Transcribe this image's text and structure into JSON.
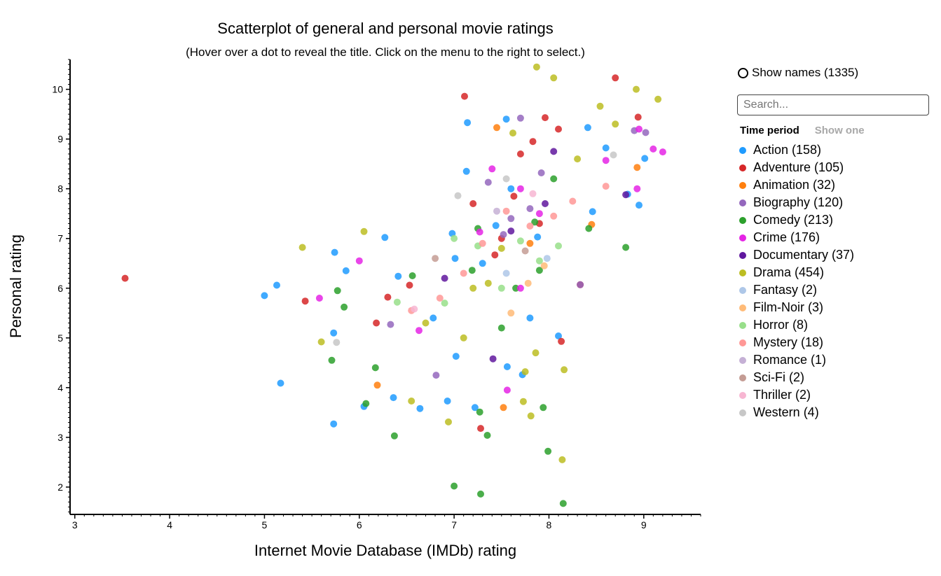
{
  "chart_data": {
    "type": "scatter",
    "title": "Scatterplot of general and personal movie ratings",
    "subtitle": "(Hover over a dot to reveal the title. Click on the menu to the right to select.)",
    "xlabel": "Internet Movie Database (IMDb) rating",
    "ylabel": "Personal rating",
    "xlim": [
      2.95,
      9.6
    ],
    "ylim": [
      1.45,
      10.6
    ],
    "x_ticks": [
      3,
      4,
      5,
      6,
      7,
      8,
      9
    ],
    "y_ticks": [
      2,
      3,
      4,
      5,
      6,
      7,
      8,
      9,
      10
    ],
    "grid": false,
    "legend_position": "right",
    "series": [
      {
        "name": "Action",
        "color": "#1f9bff",
        "points": [
          [
            5.0,
            5.85
          ],
          [
            5.13,
            6.06
          ],
          [
            5.17,
            4.09
          ],
          [
            5.73,
            3.27
          ],
          [
            5.74,
            6.72
          ],
          [
            5.73,
            5.1
          ],
          [
            5.86,
            6.35
          ],
          [
            6.05,
            3.62
          ],
          [
            6.27,
            7.02
          ],
          [
            6.36,
            3.8
          ],
          [
            6.41,
            6.24
          ],
          [
            6.64,
            3.58
          ],
          [
            6.78,
            5.4
          ],
          [
            6.93,
            3.73
          ],
          [
            7.02,
            4.63
          ],
          [
            7.13,
            8.35
          ],
          [
            7.14,
            9.33
          ],
          [
            7.22,
            3.6
          ],
          [
            7.44,
            7.26
          ],
          [
            7.55,
            9.4
          ],
          [
            7.56,
            4.42
          ],
          [
            7.72,
            4.26
          ],
          [
            7.8,
            5.4
          ],
          [
            7.88,
            7.03
          ],
          [
            8.1,
            5.04
          ],
          [
            8.41,
            9.23
          ],
          [
            8.46,
            7.54
          ],
          [
            8.6,
            8.82
          ],
          [
            8.83,
            7.89
          ],
          [
            8.95,
            7.67
          ],
          [
            9.01,
            8.61
          ],
          [
            7.01,
            6.6
          ],
          [
            7.3,
            6.5
          ],
          [
            6.98,
            7.1
          ],
          [
            7.6,
            8.0
          ]
        ]
      },
      {
        "name": "Adventure",
        "color": "#d62728",
        "points": [
          [
            3.53,
            6.2
          ],
          [
            5.43,
            5.74
          ],
          [
            6.18,
            5.3
          ],
          [
            6.3,
            5.82
          ],
          [
            6.53,
            6.06
          ],
          [
            7.11,
            9.86
          ],
          [
            7.28,
            3.18
          ],
          [
            7.43,
            6.67
          ],
          [
            7.63,
            7.85
          ],
          [
            7.83,
            8.95
          ],
          [
            7.96,
            9.43
          ],
          [
            8.13,
            4.93
          ],
          [
            8.33,
            6.07
          ],
          [
            8.7,
            10.23
          ],
          [
            8.94,
            9.44
          ],
          [
            7.2,
            7.7
          ],
          [
            7.5,
            7.0
          ],
          [
            7.9,
            7.3
          ],
          [
            7.7,
            8.7
          ],
          [
            8.1,
            9.2
          ]
        ]
      },
      {
        "name": "Animation",
        "color": "#ff7f0e",
        "points": [
          [
            6.19,
            4.05
          ],
          [
            7.52,
            3.6
          ],
          [
            8.45,
            7.28
          ],
          [
            8.93,
            8.43
          ],
          [
            7.8,
            6.9
          ],
          [
            7.45,
            9.23
          ]
        ]
      },
      {
        "name": "Biography",
        "color": "#9467bd",
        "points": [
          [
            6.33,
            5.27
          ],
          [
            6.81,
            4.25
          ],
          [
            7.36,
            8.13
          ],
          [
            7.52,
            7.08
          ],
          [
            7.92,
            8.32
          ],
          [
            8.33,
            6.07
          ],
          [
            8.9,
            9.17
          ],
          [
            9.02,
            9.13
          ],
          [
            7.6,
            7.4
          ],
          [
            7.8,
            7.6
          ],
          [
            7.7,
            9.42
          ]
        ]
      },
      {
        "name": "Comedy",
        "color": "#2ca02c",
        "points": [
          [
            5.77,
            5.95
          ],
          [
            5.71,
            4.55
          ],
          [
            5.84,
            5.62
          ],
          [
            6.17,
            4.4
          ],
          [
            6.07,
            3.68
          ],
          [
            6.37,
            3.03
          ],
          [
            6.56,
            6.25
          ],
          [
            7.0,
            2.02
          ],
          [
            7.19,
            6.36
          ],
          [
            7.27,
            3.51
          ],
          [
            7.28,
            1.86
          ],
          [
            7.35,
            3.04
          ],
          [
            7.85,
            7.33
          ],
          [
            7.9,
            6.36
          ],
          [
            7.94,
            3.6
          ],
          [
            7.99,
            2.72
          ],
          [
            8.15,
            1.67
          ],
          [
            8.42,
            7.2
          ],
          [
            8.81,
            6.82
          ],
          [
            7.5,
            5.2
          ],
          [
            7.65,
            6.0
          ],
          [
            7.25,
            7.2
          ],
          [
            8.05,
            8.2
          ]
        ]
      },
      {
        "name": "Crime",
        "color": "#e524e5",
        "points": [
          [
            5.58,
            5.8
          ],
          [
            6.0,
            6.55
          ],
          [
            6.63,
            5.15
          ],
          [
            7.27,
            7.13
          ],
          [
            7.56,
            3.95
          ],
          [
            7.7,
            6.0
          ],
          [
            8.6,
            8.57
          ],
          [
            8.93,
            8.0
          ],
          [
            9.1,
            8.8
          ],
          [
            9.2,
            8.74
          ],
          [
            8.95,
            9.2
          ],
          [
            7.4,
            8.4
          ],
          [
            7.7,
            8.0
          ],
          [
            7.9,
            7.5
          ]
        ]
      },
      {
        "name": "Documentary",
        "color": "#60179e",
        "points": [
          [
            7.41,
            4.58
          ],
          [
            8.81,
            7.88
          ],
          [
            8.05,
            8.75
          ],
          [
            7.6,
            7.15
          ],
          [
            6.9,
            6.2
          ],
          [
            7.96,
            7.7
          ]
        ]
      },
      {
        "name": "Drama",
        "color": "#bcbd22",
        "points": [
          [
            5.4,
            6.82
          ],
          [
            5.6,
            4.92
          ],
          [
            6.05,
            7.14
          ],
          [
            6.94,
            3.31
          ],
          [
            7.36,
            6.1
          ],
          [
            7.62,
            9.12
          ],
          [
            7.75,
            4.32
          ],
          [
            7.81,
            3.43
          ],
          [
            7.87,
            10.45
          ],
          [
            8.05,
            10.23
          ],
          [
            8.14,
            2.55
          ],
          [
            8.16,
            4.36
          ],
          [
            8.54,
            9.66
          ],
          [
            8.92,
            10.0
          ],
          [
            9.15,
            9.8
          ],
          [
            7.5,
            6.8
          ],
          [
            7.2,
            6.0
          ],
          [
            6.7,
            5.3
          ],
          [
            8.3,
            8.6
          ],
          [
            8.7,
            9.3
          ],
          [
            7.1,
            5.0
          ],
          [
            7.86,
            4.7
          ],
          [
            6.55,
            3.73
          ],
          [
            7.73,
            3.72
          ]
        ]
      },
      {
        "name": "Fantasy",
        "color": "#aec7e8",
        "points": [
          [
            7.55,
            6.3
          ],
          [
            7.98,
            6.6
          ]
        ]
      },
      {
        "name": "Film-Noir",
        "color": "#ffbb78",
        "points": [
          [
            7.6,
            5.5
          ],
          [
            7.78,
            6.1
          ],
          [
            7.95,
            6.45
          ]
        ]
      },
      {
        "name": "Horror",
        "color": "#98df8a",
        "points": [
          [
            6.4,
            5.72
          ],
          [
            6.9,
            5.7
          ],
          [
            7.0,
            7.0
          ],
          [
            7.25,
            6.85
          ],
          [
            7.5,
            6.0
          ],
          [
            7.7,
            6.95
          ],
          [
            7.9,
            6.55
          ],
          [
            8.1,
            6.85
          ]
        ]
      },
      {
        "name": "Mystery",
        "color": "#ff9896",
        "points": [
          [
            6.55,
            5.55
          ],
          [
            6.85,
            5.8
          ],
          [
            7.1,
            6.3
          ],
          [
            7.3,
            6.9
          ],
          [
            7.55,
            7.55
          ],
          [
            7.8,
            7.25
          ],
          [
            8.05,
            7.45
          ],
          [
            8.25,
            7.75
          ],
          [
            8.6,
            8.05
          ]
        ]
      },
      {
        "name": "Romance",
        "color": "#c5b0d5",
        "points": [
          [
            7.45,
            7.55
          ]
        ]
      },
      {
        "name": "Sci-Fi",
        "color": "#c49c94",
        "points": [
          [
            6.8,
            6.6
          ],
          [
            7.75,
            6.75
          ]
        ]
      },
      {
        "name": "Thriller",
        "color": "#f7b6d2",
        "points": [
          [
            6.58,
            5.58
          ],
          [
            7.83,
            7.9
          ]
        ]
      },
      {
        "name": "Western",
        "color": "#c7c7c7",
        "points": [
          [
            5.76,
            4.91
          ],
          [
            7.04,
            7.86
          ],
          [
            7.55,
            8.2
          ],
          [
            8.68,
            8.68
          ]
        ]
      }
    ]
  },
  "controls": {
    "show_names_label": "Show names (1335)",
    "search_placeholder": "Search...",
    "tabs": [
      "Time period",
      "Show one"
    ]
  },
  "legend": [
    {
      "label": "Action (158)",
      "color": "#1f9bff"
    },
    {
      "label": "Adventure (105)",
      "color": "#d62728"
    },
    {
      "label": "Animation (32)",
      "color": "#ff7f0e"
    },
    {
      "label": "Biography (120)",
      "color": "#9467bd"
    },
    {
      "label": "Comedy (213)",
      "color": "#2ca02c"
    },
    {
      "label": "Crime (176)",
      "color": "#e524e5"
    },
    {
      "label": "Documentary (37)",
      "color": "#60179e"
    },
    {
      "label": "Drama (454)",
      "color": "#bcbd22"
    },
    {
      "label": "Fantasy (2)",
      "color": "#aec7e8"
    },
    {
      "label": "Film-Noir (3)",
      "color": "#ffbb78"
    },
    {
      "label": "Horror (8)",
      "color": "#98df8a"
    },
    {
      "label": "Mystery (18)",
      "color": "#ff9896"
    },
    {
      "label": "Romance (1)",
      "color": "#c5b0d5"
    },
    {
      "label": "Sci-Fi (2)",
      "color": "#c49c94"
    },
    {
      "label": "Thriller (2)",
      "color": "#f7b6d2"
    },
    {
      "label": "Western (4)",
      "color": "#c7c7c7"
    }
  ]
}
